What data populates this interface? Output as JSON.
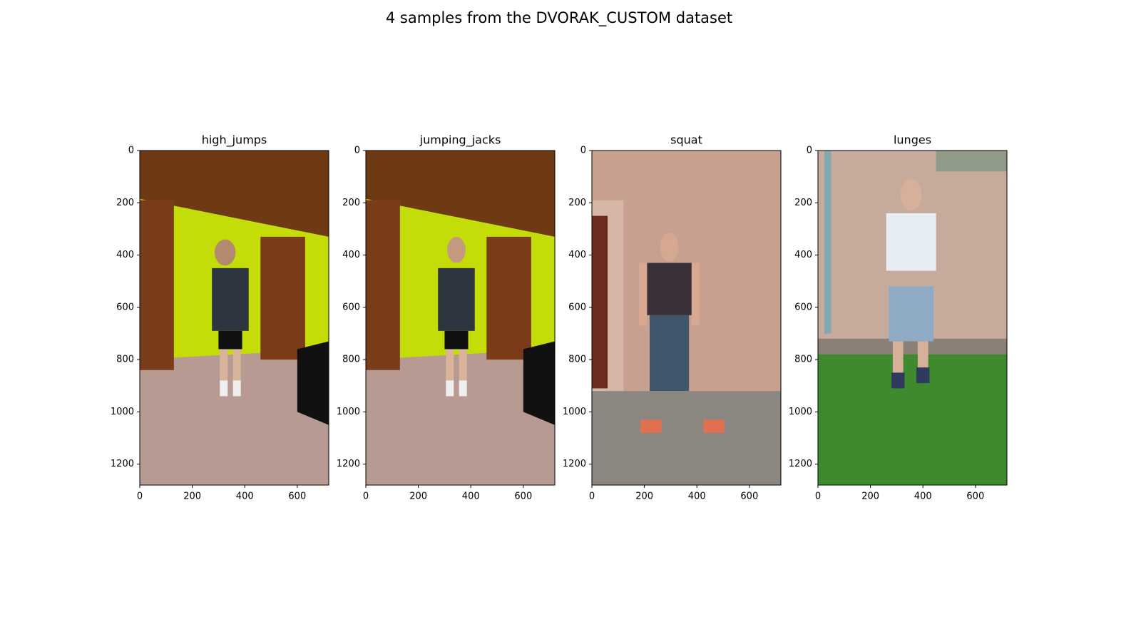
{
  "title": "4 samples from the DVORAK_CUSTOM dataset",
  "chart_data": [
    {
      "type": "image",
      "title": "high_jumps",
      "xlim": [
        0,
        720
      ],
      "ylim": [
        1280,
        0
      ],
      "xticks": [
        0,
        200,
        400,
        600
      ],
      "yticks": [
        0,
        200,
        400,
        600,
        800,
        1000,
        1200
      ]
    },
    {
      "type": "image",
      "title": "jumping_jacks",
      "xlim": [
        0,
        720
      ],
      "ylim": [
        1280,
        0
      ],
      "xticks": [
        0,
        200,
        400,
        600
      ],
      "yticks": [
        0,
        200,
        400,
        600,
        800,
        1000,
        1200
      ]
    },
    {
      "type": "image",
      "title": "squat",
      "xlim": [
        0,
        720
      ],
      "ylim": [
        1280,
        0
      ],
      "xticks": [
        0,
        200,
        400,
        600
      ],
      "yticks": [
        0,
        200,
        400,
        600,
        800,
        1000,
        1200
      ]
    },
    {
      "type": "image",
      "title": "lunges",
      "xlim": [
        0,
        720
      ],
      "ylim": [
        1280,
        0
      ],
      "xticks": [
        0,
        200,
        400,
        600
      ],
      "yticks": [
        0,
        200,
        400,
        600,
        800,
        1000,
        1200
      ]
    }
  ]
}
